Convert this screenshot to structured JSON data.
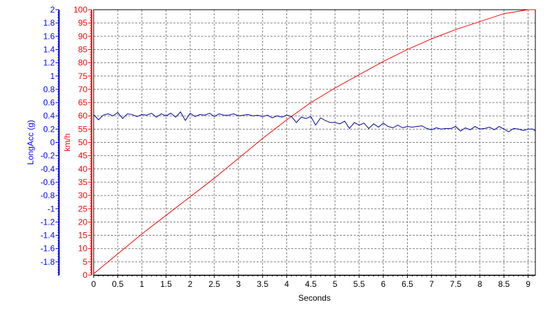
{
  "chart_data": {
    "type": "line",
    "xlabel": "Seconds",
    "xlim": [
      0,
      9.15
    ],
    "x_ticks": [
      "0",
      "0.5",
      "1",
      "1.5",
      "2",
      "2.5",
      "3",
      "3.5",
      "4",
      "4.5",
      "5",
      "5.5",
      "6",
      "6.5",
      "7",
      "7.5",
      "8",
      "8.5",
      "9"
    ],
    "grid": true,
    "axes": {
      "left_outer": {
        "label": "LongAcc (g)",
        "color": "#0000ff",
        "ylim": [
          -2,
          2
        ],
        "ticks": [
          "2",
          "1.8",
          "1.6",
          "1.4",
          "1.2",
          "1",
          "0.8",
          "0.6",
          "0.4",
          "0.2",
          "0",
          "-0.2",
          "-0.4",
          "-0.6",
          "-0.8",
          "-1",
          "-1.2",
          "-1.4",
          "-1.6",
          "-1.8"
        ]
      },
      "left_inner": {
        "label": "km/h",
        "color": "#ff0000",
        "ylim": [
          0,
          100
        ],
        "ticks": [
          "100",
          "95",
          "90",
          "85",
          "80",
          "75",
          "70",
          "65",
          "60",
          "55",
          "50",
          "45",
          "40",
          "35",
          "30",
          "25",
          "20",
          "15",
          "10",
          "5",
          "0"
        ]
      }
    },
    "series": [
      {
        "axis": "left_inner",
        "color": "#ff0000",
        "x": [
          0,
          0.5,
          1,
          1.5,
          2,
          2.5,
          3,
          3.5,
          4,
          4.5,
          5,
          5.5,
          6,
          6.5,
          7,
          7.5,
          8,
          8.5,
          9,
          9.15
        ],
        "values": [
          0.5,
          8,
          15.5,
          22.5,
          29.5,
          36.5,
          44,
          51.5,
          58.5,
          65,
          70.5,
          75.5,
          80.5,
          85,
          89,
          92.5,
          95.5,
          98.5,
          100,
          100
        ]
      },
      {
        "axis": "left_outer",
        "color": "#00009c",
        "x": [
          0,
          0.1,
          0.2,
          0.3,
          0.4,
          0.5,
          0.6,
          0.7,
          0.8,
          0.9,
          1,
          1.1,
          1.2,
          1.3,
          1.4,
          1.5,
          1.6,
          1.7,
          1.8,
          1.9,
          2,
          2.1,
          2.2,
          2.3,
          2.4,
          2.5,
          2.6,
          2.7,
          2.8,
          2.9,
          3,
          3.1,
          3.2,
          3.3,
          3.4,
          3.5,
          3.6,
          3.7,
          3.8,
          3.9,
          4,
          4.1,
          4.2,
          4.3,
          4.4,
          4.5,
          4.6,
          4.7,
          4.8,
          4.9,
          5,
          5.1,
          5.2,
          5.3,
          5.4,
          5.5,
          5.6,
          5.7,
          5.8,
          5.9,
          6,
          6.1,
          6.2,
          6.3,
          6.4,
          6.5,
          6.6,
          6.7,
          6.8,
          6.9,
          7,
          7.1,
          7.2,
          7.3,
          7.4,
          7.5,
          7.6,
          7.7,
          7.8,
          7.9,
          8,
          8.1,
          8.2,
          8.3,
          8.4,
          8.5,
          8.6,
          8.7,
          8.8,
          8.9,
          9,
          9.1,
          9.15
        ],
        "values": [
          0.42,
          0.34,
          0.41,
          0.43,
          0.4,
          0.45,
          0.36,
          0.43,
          0.42,
          0.39,
          0.42,
          0.41,
          0.44,
          0.38,
          0.43,
          0.4,
          0.44,
          0.38,
          0.46,
          0.33,
          0.44,
          0.39,
          0.42,
          0.41,
          0.44,
          0.39,
          0.43,
          0.41,
          0.41,
          0.43,
          0.4,
          0.41,
          0.42,
          0.4,
          0.41,
          0.39,
          0.41,
          0.37,
          0.4,
          0.38,
          0.41,
          0.39,
          0.3,
          0.38,
          0.36,
          0.39,
          0.26,
          0.37,
          0.33,
          0.3,
          0.3,
          0.28,
          0.32,
          0.21,
          0.3,
          0.26,
          0.29,
          0.21,
          0.28,
          0.23,
          0.29,
          0.24,
          0.22,
          0.26,
          0.22,
          0.24,
          0.23,
          0.24,
          0.25,
          0.21,
          0.19,
          0.22,
          0.2,
          0.21,
          0.21,
          0.24,
          0.17,
          0.22,
          0.19,
          0.24,
          0.2,
          0.21,
          0.23,
          0.19,
          0.24,
          0.2,
          0.16,
          0.21,
          0.2,
          0.18,
          0.2,
          0.2,
          0.17
        ]
      }
    ]
  }
}
